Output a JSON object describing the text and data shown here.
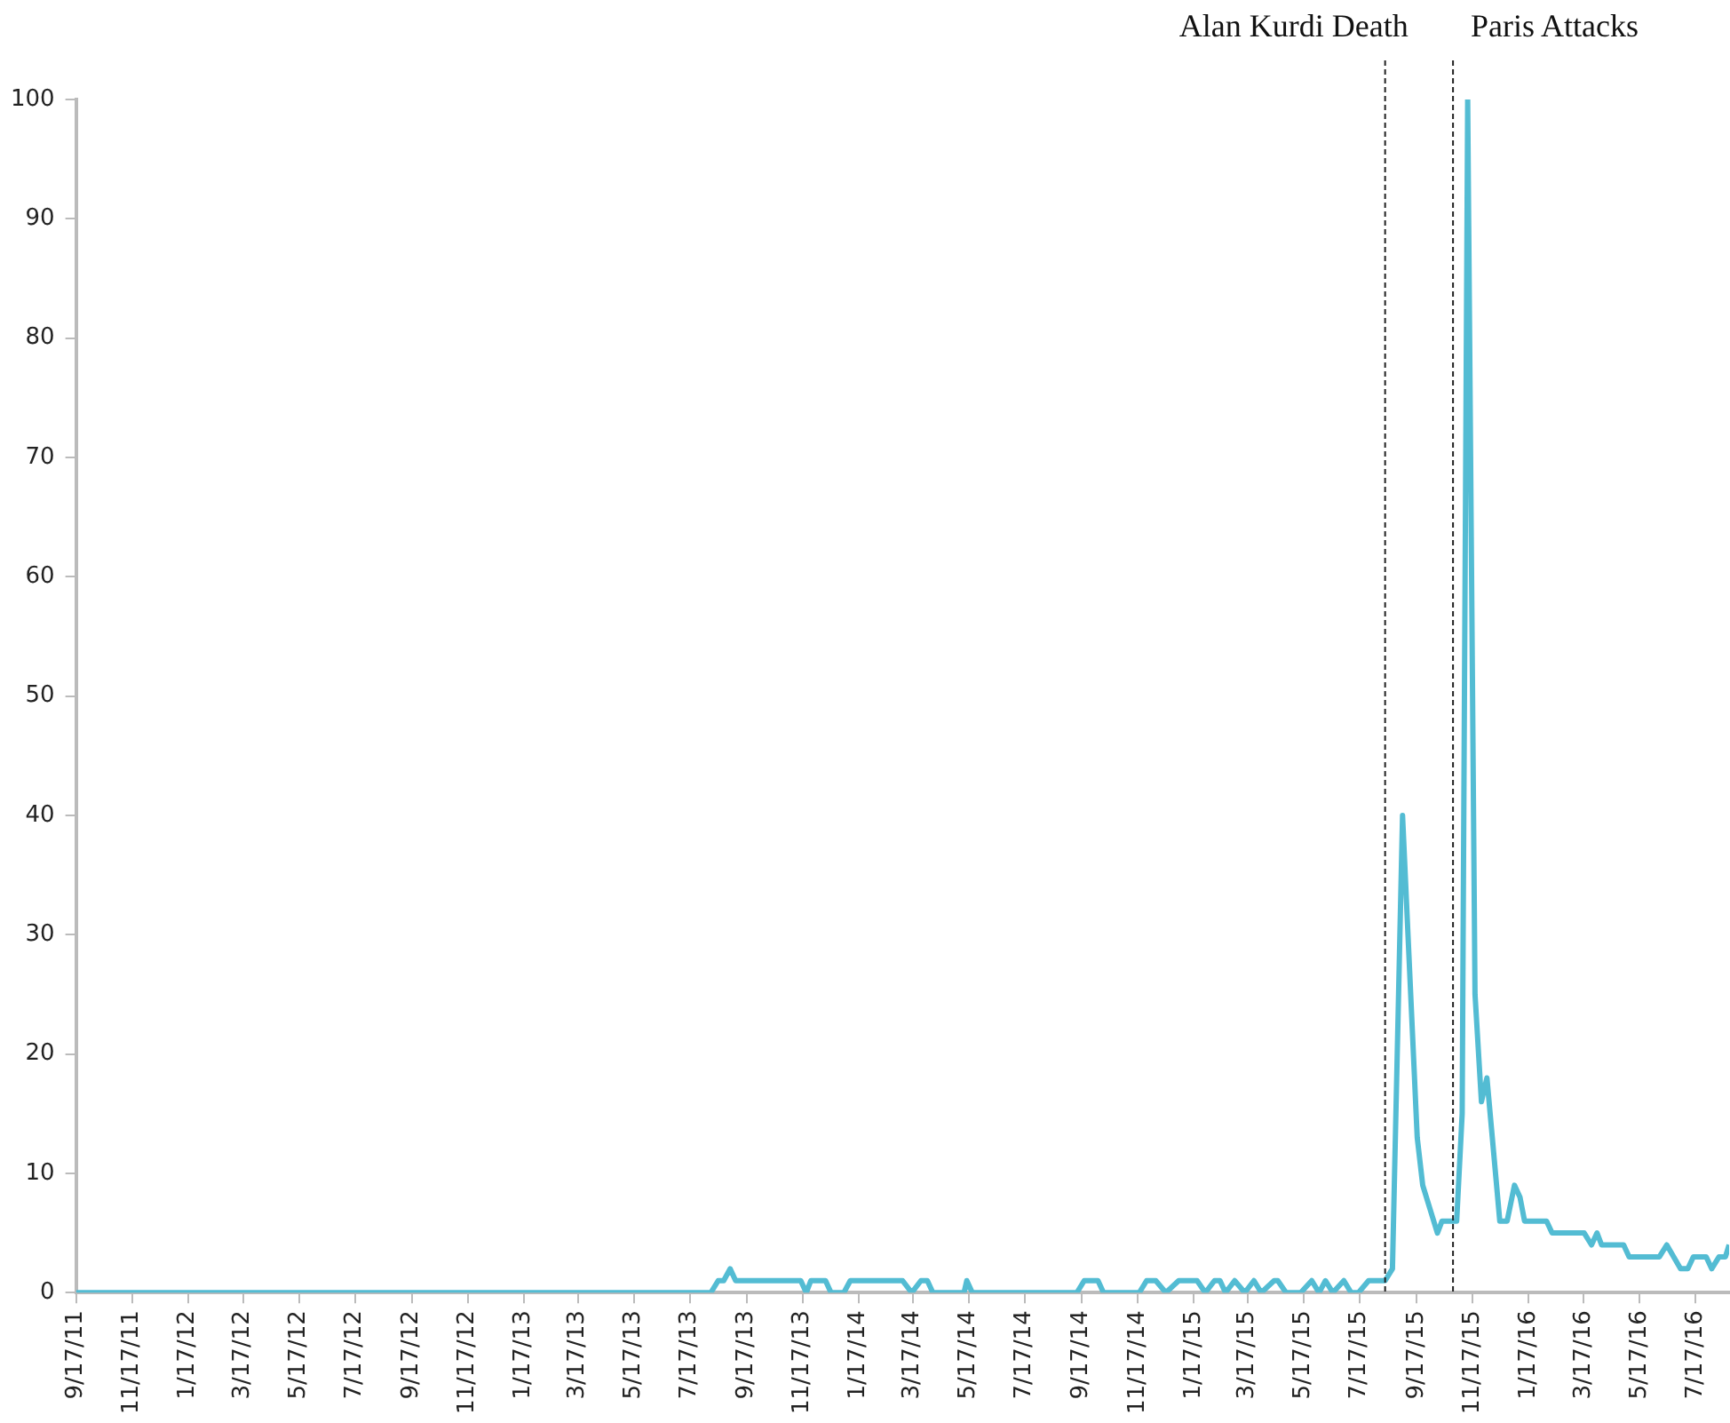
{
  "chart_data": {
    "type": "line",
    "x": [
      "2011-09-17",
      "2013-08-09",
      "2013-08-17",
      "2013-08-23",
      "2013-08-30",
      "2013-09-05",
      "2013-11-15",
      "2013-11-21",
      "2013-11-26",
      "2013-12-12",
      "2013-12-18",
      "2014-01-01",
      "2014-01-08",
      "2014-03-06",
      "2014-03-16",
      "2014-03-26",
      "2014-04-02",
      "2014-04-08",
      "2014-05-12",
      "2014-05-15",
      "2014-05-21",
      "2014-09-12",
      "2014-09-20",
      "2014-10-05",
      "2014-10-11",
      "2014-11-19",
      "2014-11-27",
      "2014-12-07",
      "2014-12-18",
      "2015-01-01",
      "2015-01-21",
      "2015-01-30",
      "2015-02-09",
      "2015-02-15",
      "2015-02-21",
      "2015-03-03",
      "2015-03-14",
      "2015-03-24",
      "2015-04-01",
      "2015-04-15",
      "2015-04-19",
      "2015-04-28",
      "2015-05-14",
      "2015-05-26",
      "2015-06-03",
      "2015-06-10",
      "2015-06-18",
      "2015-06-30",
      "2015-07-08",
      "2015-07-16",
      "2015-07-27",
      "2015-08-14",
      "2015-08-22",
      "2015-09-02",
      "2015-09-18",
      "2015-09-24",
      "2015-10-10",
      "2015-10-15",
      "2015-10-31",
      "2015-11-06",
      "2015-11-12",
      "2015-11-20",
      "2015-11-27",
      "2015-12-03",
      "2015-12-17",
      "2015-12-25",
      "2016-01-02",
      "2016-01-08",
      "2016-01-13",
      "2016-02-06",
      "2016-02-12",
      "2016-03-18",
      "2016-03-26",
      "2016-04-01",
      "2016-04-06",
      "2016-04-30",
      "2016-05-06",
      "2016-06-08",
      "2016-06-16",
      "2016-07-01",
      "2016-07-09",
      "2016-07-15",
      "2016-07-29",
      "2016-08-04",
      "2016-08-12",
      "2016-08-19",
      "2016-08-23"
    ],
    "series": [
      {
        "color": "#53bcd3",
        "values": [
          0,
          0,
          1,
          1,
          2,
          1,
          1,
          0,
          1,
          1,
          0,
          0,
          1,
          1,
          0,
          1,
          1,
          0,
          0,
          1,
          0,
          0,
          1,
          1,
          0,
          0,
          1,
          1,
          0,
          1,
          1,
          0,
          1,
          1,
          0,
          1,
          0,
          1,
          0,
          1,
          1,
          0,
          0,
          1,
          0,
          1,
          0,
          1,
          0,
          0,
          1,
          1,
          2,
          40,
          13,
          9,
          5,
          6,
          6,
          15,
          100,
          25,
          16,
          18,
          6,
          6,
          9,
          8,
          6,
          6,
          5,
          5,
          4,
          5,
          4,
          4,
          3,
          3,
          4,
          2,
          2,
          3,
          3,
          2,
          3,
          3,
          4
        ]
      }
    ],
    "xlim": [
      "2011-09-17",
      "2016-08-23"
    ],
    "xticks": [
      {
        "value": "2011-09-17",
        "label": "9/17/11"
      },
      {
        "value": "2011-11-17",
        "label": "11/17/11"
      },
      {
        "value": "2012-01-17",
        "label": "1/17/12"
      },
      {
        "value": "2012-03-17",
        "label": "3/17/12"
      },
      {
        "value": "2012-05-17",
        "label": "5/17/12"
      },
      {
        "value": "2012-07-17",
        "label": "7/17/12"
      },
      {
        "value": "2012-09-17",
        "label": "9/17/12"
      },
      {
        "value": "2012-11-17",
        "label": "11/17/12"
      },
      {
        "value": "2013-01-17",
        "label": "1/17/13"
      },
      {
        "value": "2013-03-17",
        "label": "3/17/13"
      },
      {
        "value": "2013-05-17",
        "label": "5/17/13"
      },
      {
        "value": "2013-07-17",
        "label": "7/17/13"
      },
      {
        "value": "2013-09-17",
        "label": "9/17/13"
      },
      {
        "value": "2013-11-17",
        "label": "11/17/13"
      },
      {
        "value": "2014-01-17",
        "label": "1/17/14"
      },
      {
        "value": "2014-03-17",
        "label": "3/17/14"
      },
      {
        "value": "2014-05-17",
        "label": "5/17/14"
      },
      {
        "value": "2014-07-17",
        "label": "7/17/14"
      },
      {
        "value": "2014-09-17",
        "label": "9/17/14"
      },
      {
        "value": "2014-11-17",
        "label": "11/17/14"
      },
      {
        "value": "2015-01-17",
        "label": "1/17/15"
      },
      {
        "value": "2015-03-17",
        "label": "3/17/15"
      },
      {
        "value": "2015-05-17",
        "label": "5/17/15"
      },
      {
        "value": "2015-07-17",
        "label": "7/17/15"
      },
      {
        "value": "2015-09-17",
        "label": "9/17/15"
      },
      {
        "value": "2015-11-17",
        "label": "11/17/15"
      },
      {
        "value": "2016-01-17",
        "label": "1/17/16"
      },
      {
        "value": "2016-03-17",
        "label": "3/17/16"
      },
      {
        "value": "2016-05-17",
        "label": "5/17/16"
      },
      {
        "value": "2016-07-17",
        "label": "7/17/16"
      }
    ],
    "ylim": [
      0,
      100
    ],
    "yticks": [
      0,
      10,
      20,
      30,
      40,
      50,
      60,
      70,
      80,
      90,
      100
    ],
    "ref_lines": [
      {
        "axis": "x",
        "value": "2015-08-14",
        "label": "Alan Kurdi Death",
        "color": "#222222",
        "line_style": "dashed"
      },
      {
        "axis": "x",
        "value": "2015-10-27",
        "label": "Paris Attacks",
        "color": "#222222",
        "line_style": "dashed"
      }
    ],
    "marker": "none",
    "line_style": "solid"
  }
}
